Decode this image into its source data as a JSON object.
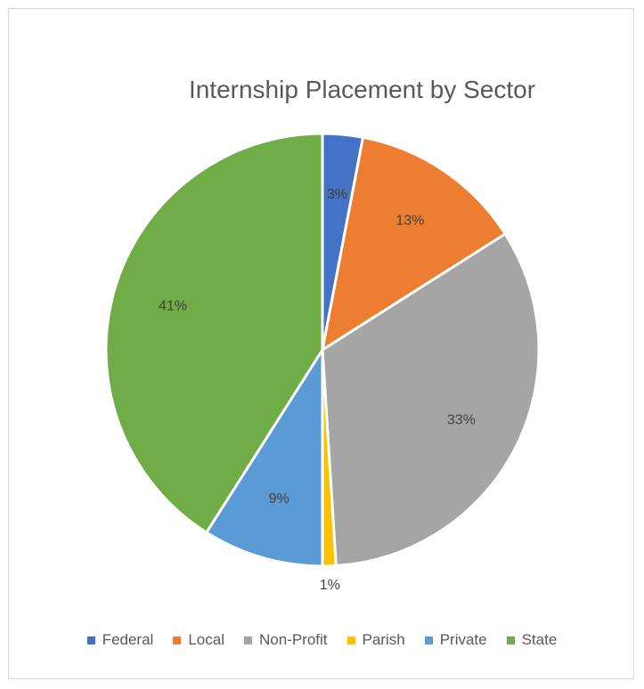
{
  "chart_data": {
    "type": "pie",
    "title": "Internship Placement by Sector",
    "categories": [
      "Federal",
      "Local",
      "Non-Profit",
      "Parish",
      "Private",
      "State"
    ],
    "values": [
      3,
      13,
      33,
      1,
      9,
      41
    ],
    "labels": [
      "3%",
      "13%",
      "33%",
      "1%",
      "9%",
      "41%"
    ],
    "colors": [
      "#4472C4",
      "#ED7D31",
      "#A5A5A5",
      "#FFC000",
      "#5B9BD5",
      "#70AD47"
    ],
    "legend_position": "bottom"
  }
}
